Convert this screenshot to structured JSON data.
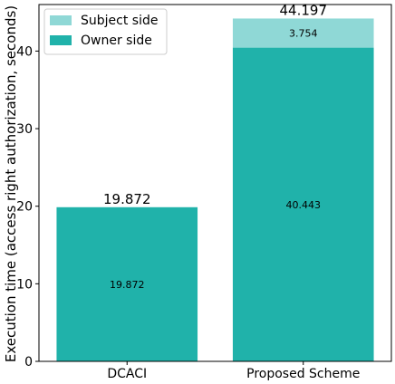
{
  "chart_data": {
    "type": "bar",
    "stacked": true,
    "categories": [
      "DCACI",
      "Proposed Scheme"
    ],
    "series": [
      {
        "name": "Owner side",
        "values": [
          19.872,
          40.443
        ],
        "color": "#20b2aa",
        "value_labels": [
          "19.872",
          "40.443"
        ]
      },
      {
        "name": "Subject side",
        "values": [
          0,
          3.754
        ],
        "color": "#8fd8d6",
        "value_labels": [
          "",
          "3.754"
        ]
      }
    ],
    "totals": [
      19.872,
      44.197
    ],
    "total_labels": [
      "19.872",
      "44.197"
    ],
    "title": "",
    "xlabel": "",
    "ylabel": "Execution time (access right authorization, seconds)",
    "ylim": [
      0,
      46
    ],
    "yticks": [
      0,
      10,
      20,
      30,
      40
    ],
    "grid": false,
    "legend_position": "top-left",
    "legend_order": [
      "Subject side",
      "Owner side"
    ]
  }
}
